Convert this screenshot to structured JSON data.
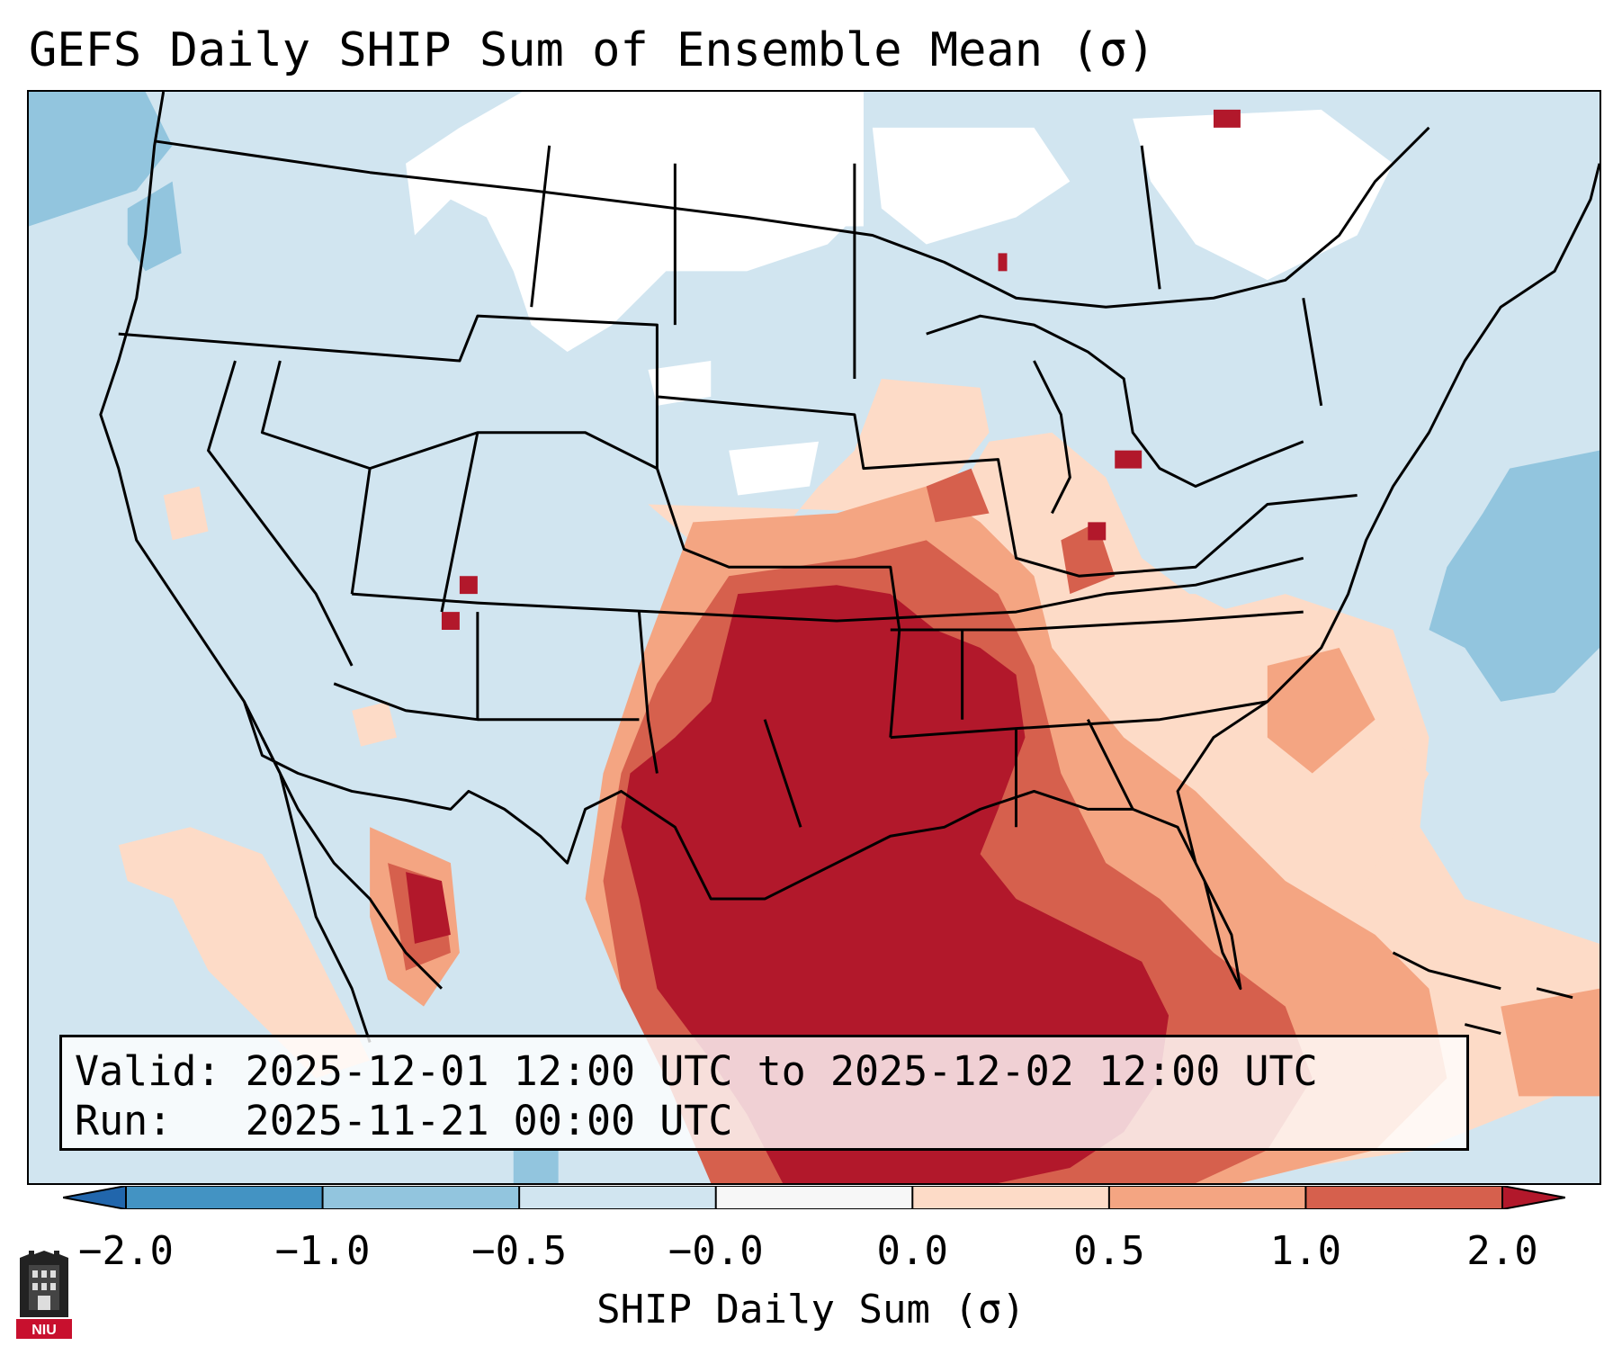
{
  "title": "GEFS Daily SHIP Sum of Ensemble Mean (σ)",
  "valid_line": "Valid: 2025-12-01 12:00 UTC to 2025-12-02 12:00 UTC",
  "run_line": "Run:   2025-11-21 00:00 UTC",
  "colorbar": {
    "label": "SHIP Daily Sum (σ)",
    "ticks": [
      "−2.0",
      "−1.0",
      "−0.5",
      "−0.0",
      "0.0",
      "0.5",
      "1.0",
      "2.0"
    ],
    "colors": [
      "#2166ac",
      "#4393c3",
      "#92c5de",
      "#d1e5f0",
      "#f7f7f7",
      "#fddbc7",
      "#f4a582",
      "#d6604d",
      "#b2182b"
    ]
  },
  "logo_text": "NIU",
  "field_colors": {
    "very_low": "#92c5de",
    "low": "#d1e5f0",
    "neutral": "#ffffff",
    "slight": "#fddbc7",
    "moderate": "#f4a582",
    "high": "#d6604d",
    "very_high": "#b2182b"
  }
}
